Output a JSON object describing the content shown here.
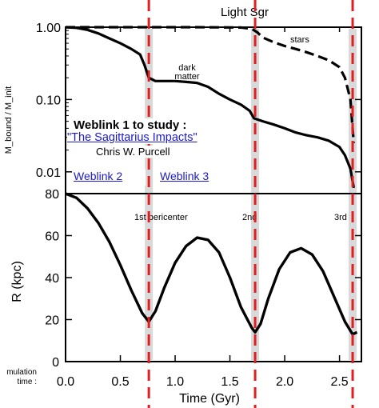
{
  "chart_data": [
    {
      "type": "line",
      "title": "Light Sgr",
      "ylabel": "M_bound / M_init",
      "xlim": [
        0.0,
        2.7
      ],
      "ylim": [
        0.005,
        1.0
      ],
      "yscale": "log",
      "yticks": [
        "0.01",
        "0.10",
        "1.00"
      ],
      "series": [
        {
          "name": "dark matter",
          "style": "solid",
          "x": [
            0.0,
            0.1,
            0.2,
            0.3,
            0.4,
            0.5,
            0.6,
            0.68,
            0.72,
            0.76,
            0.82,
            0.9,
            1.0,
            1.1,
            1.2,
            1.3,
            1.4,
            1.5,
            1.6,
            1.68,
            1.72,
            1.8,
            1.9,
            2.0,
            2.1,
            2.2,
            2.3,
            2.4,
            2.5,
            2.55,
            2.6,
            2.63
          ],
          "y": [
            1.0,
            0.98,
            0.92,
            0.82,
            0.7,
            0.6,
            0.5,
            0.42,
            0.3,
            0.2,
            0.18,
            0.18,
            0.18,
            0.175,
            0.17,
            0.15,
            0.12,
            0.1,
            0.085,
            0.07,
            0.055,
            0.05,
            0.045,
            0.04,
            0.035,
            0.032,
            0.03,
            0.027,
            0.022,
            0.017,
            0.011,
            0.006
          ]
        },
        {
          "name": "stars",
          "style": "dashed",
          "x": [
            0.0,
            0.4,
            0.8,
            1.2,
            1.6,
            1.7,
            1.75,
            1.8,
            1.9,
            2.0,
            2.1,
            2.2,
            2.3,
            2.4,
            2.5,
            2.55,
            2.6,
            2.63
          ],
          "y": [
            1.0,
            1.0,
            1.0,
            1.0,
            0.99,
            0.95,
            0.85,
            0.72,
            0.62,
            0.55,
            0.5,
            0.45,
            0.4,
            0.35,
            0.28,
            0.2,
            0.1,
            0.025
          ]
        }
      ],
      "annotations": [
        "dark matter",
        "stars"
      ]
    },
    {
      "type": "line",
      "xlabel": "Time (Gyr)",
      "ylabel": "R (kpc)",
      "xlim": [
        0.0,
        2.7
      ],
      "ylim": [
        0,
        80
      ],
      "xticks": [
        "0.0",
        "0.5",
        "1.0",
        "1.5",
        "2.0",
        "2.5"
      ],
      "yticks": [
        "0",
        "20",
        "40",
        "60",
        "80"
      ],
      "series": [
        {
          "name": "orbit",
          "style": "solid",
          "x": [
            0.0,
            0.1,
            0.2,
            0.3,
            0.4,
            0.5,
            0.6,
            0.7,
            0.76,
            0.82,
            0.9,
            1.0,
            1.1,
            1.2,
            1.3,
            1.4,
            1.5,
            1.6,
            1.7,
            1.73,
            1.78,
            1.85,
            1.95,
            2.05,
            2.15,
            2.25,
            2.35,
            2.45,
            2.55,
            2.62,
            2.66
          ],
          "y": [
            80,
            78,
            73,
            66,
            57,
            46,
            34,
            23,
            19,
            24,
            35,
            47,
            55,
            59,
            58,
            52,
            40,
            26,
            16,
            14,
            18,
            30,
            44,
            52,
            54,
            51,
            43,
            31,
            19,
            13,
            14
          ]
        }
      ],
      "annotations": [
        "1st pericenter",
        "2nd",
        "3rd"
      ]
    }
  ],
  "pericenter_times": [
    0.76,
    1.73,
    2.62
  ],
  "weblink": {
    "title": "Weblink 1 to study :",
    "link_text": "\"The Sagittarius Impacts\"",
    "author": "Chris W. Purcell",
    "link2": "Weblink 2",
    "link3": "Weblink 3"
  },
  "sim_label": "mulation\ntime :",
  "colors": {
    "curve": "#000000",
    "marker": "#e02020",
    "band": "#d9d9d9",
    "link": "#1a1acc"
  }
}
